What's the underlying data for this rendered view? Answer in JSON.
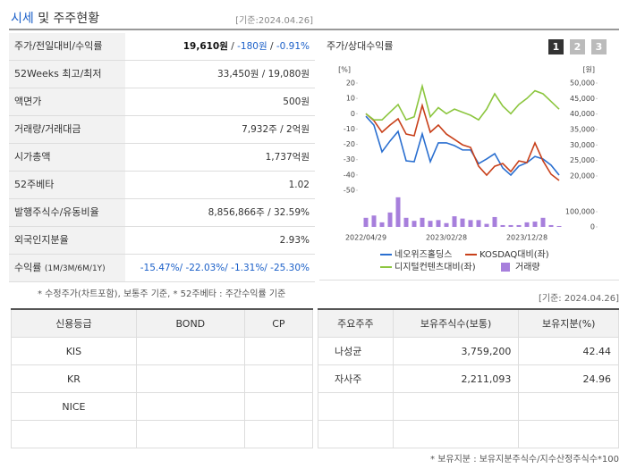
{
  "header": {
    "title_highlight": "시세",
    "title_rest": "및 주주현황",
    "date": "[기준:2024.04.26]"
  },
  "summary": {
    "rows": [
      {
        "label": "주가/전일대비/수익률",
        "value": [
          {
            "text": "19,610원",
            "bold": true
          },
          {
            "text": " / "
          },
          {
            "text": "-180원",
            "color": "#1a5fc8"
          },
          {
            "text": " / "
          },
          {
            "text": "-0.91%",
            "color": "#1a5fc8"
          }
        ]
      },
      {
        "label": "52Weeks 최고/최저",
        "value": [
          {
            "text": "33,450원 / 19,080원"
          }
        ]
      },
      {
        "label": "액면가",
        "value": [
          {
            "text": "500원"
          }
        ]
      },
      {
        "label": "거래량/거래대금",
        "value": [
          {
            "text": "7,932주 / 2억원"
          }
        ]
      },
      {
        "label": "시가총액",
        "value": [
          {
            "text": "1,737억원"
          }
        ]
      },
      {
        "label": "52주베타",
        "value": [
          {
            "text": "1.02"
          }
        ]
      },
      {
        "label": "발행주식수/유동비율",
        "value": [
          {
            "text": "8,856,866주 / 32.59%"
          }
        ]
      },
      {
        "label": "외국인지분율",
        "value": [
          {
            "text": "2.93%"
          }
        ]
      },
      {
        "label": "수익률",
        "label_note": "(1M/3M/6M/1Y)",
        "value": [
          {
            "text": "-15.47%/ -22.03%/ -1.31%/ -25.30%",
            "color": "#1a5fc8"
          }
        ]
      }
    ]
  },
  "note": "* 수정주가(차트포함), 보통주 기준, * 52주베타 : 주간수익률 기준",
  "chart_data": {
    "type": "line",
    "title": "주가/상대수익률",
    "buttons": [
      "1",
      "2",
      "3"
    ],
    "active_button": 0,
    "y_label": "[%]",
    "y2_label": "[원]",
    "categories": [
      "2022/04/29",
      null,
      null,
      null,
      null,
      null,
      null,
      null,
      null,
      null,
      "2023/02/28",
      null,
      null,
      null,
      null,
      null,
      null,
      null,
      null,
      null,
      "2023/12/28",
      null,
      null,
      null,
      null
    ],
    "ylim": [
      -50,
      20
    ],
    "yticks": [
      20,
      10,
      0,
      -10,
      -20,
      -30,
      -40,
      -50
    ],
    "y2lim": [
      20000,
      50000
    ],
    "y2ticks": [
      {
        "value": 50000,
        "label": "50,000"
      },
      {
        "value": 45000,
        "label": "45,000"
      },
      {
        "value": 40000,
        "label": "40,000"
      },
      {
        "value": 35000,
        "label": "35,000"
      },
      {
        "value": 30000,
        "label": "30,000"
      },
      {
        "value": 25000,
        "label": "25,000"
      },
      {
        "value": 20000,
        "label": "20,000"
      }
    ],
    "y3lim": [
      0,
      100000
    ],
    "y3ticks": [
      {
        "value": 100000,
        "label": "100,000"
      },
      0
    ],
    "series": [
      {
        "name": "네오위즈홀딩스",
        "color": "#2a6fd0",
        "axis": "y2",
        "values": [
          39300,
          36400,
          27800,
          31300,
          34400,
          24900,
          24600,
          33600,
          24600,
          30700,
          30700,
          29800,
          28400,
          28400,
          24000,
          25500,
          27200,
          22600,
          20300,
          23200,
          24300,
          26300,
          25500,
          23500,
          20300
        ]
      },
      {
        "name": "KOSDAQ대비(좌)",
        "color": "#c8401a",
        "values": [
          0,
          -4.5,
          -12.1,
          -7.4,
          -3.3,
          -13.3,
          -14.4,
          5.4,
          -12.1,
          -7.4,
          -13.3,
          -16.8,
          -20.3,
          -22,
          -34.3,
          -40.1,
          -34.3,
          -32.5,
          -37.8,
          -30.8,
          -31.9,
          -19.1,
          -30.8,
          -39.5,
          -43.6
        ]
      },
      {
        "name": "디지털컨텐츠대비(좌)",
        "color": "#8cc63f",
        "values": [
          0,
          -4,
          -4,
          1,
          6,
          -4,
          -2,
          18,
          -2,
          4,
          0,
          3,
          1,
          -1,
          -4,
          3,
          13,
          5,
          0,
          6,
          10,
          15,
          13,
          8,
          3
        ]
      },
      {
        "name": "거래량",
        "color": "#a77fdc",
        "type": "bar",
        "axis": "y3",
        "values": [
          60000,
          75000,
          30000,
          95000,
          195000,
          60000,
          40000,
          60000,
          40000,
          45000,
          25000,
          70000,
          55000,
          45000,
          45000,
          20000,
          65000,
          12000,
          12000,
          12000,
          30000,
          35000,
          60000,
          12000,
          6000
        ]
      }
    ]
  },
  "chart_date": "[기준: 2024.04.26]",
  "credit": {
    "columns": [
      "신용등급",
      "BOND",
      "CP"
    ],
    "rows": [
      [
        "KIS"
      ],
      [
        "KR"
      ],
      [
        "NICE"
      ]
    ]
  },
  "holders": {
    "columns": [
      "주요주주",
      "보유주식수(보통)",
      "보유지분(%)"
    ],
    "rows": [
      [
        "나성균",
        "3,759,200",
        "42.44"
      ],
      [
        "자사주",
        "2,211,093",
        "24.96"
      ]
    ]
  },
  "footnote": "* 보유지분 : 보유지분주식수/지수산정주식수*100"
}
